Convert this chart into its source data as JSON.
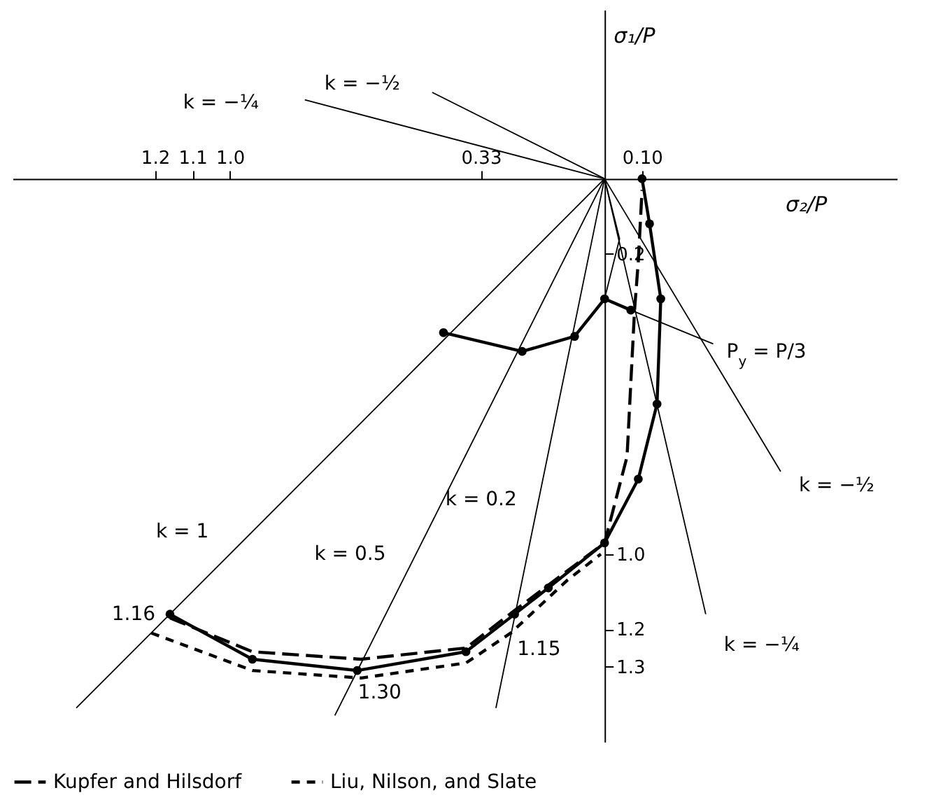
{
  "chart_data": {
    "type": "line",
    "xlabel": "σ₂/P",
    "ylabel": "σ₁/P",
    "xlim": [
      1.58,
      -0.78
    ],
    "ylim": [
      1.5,
      -0.45
    ],
    "xticks": [
      1.2,
      1.1,
      {
        "value": 1.0,
        "label": "1.0"
      },
      0.33,
      {
        "value": -0.1,
        "label": "0.10"
      }
    ],
    "yticks": [
      0.2,
      {
        "value": 1.0,
        "label": "1.0"
      },
      1.2,
      1.3
    ],
    "grid": false,
    "legend": "bottom",
    "series": [
      {
        "color": "#000000",
        "marker": "circle",
        "x": [
          1.16,
          0.94,
          0.66,
          0.37,
          0.24,
          0.15,
          0,
          -0.09,
          -0.14,
          -0.15,
          -0.12,
          -0.1
        ],
        "values": [
          1.16,
          1.28,
          1.31,
          1.26,
          1.16,
          1.09,
          0.97,
          0.8,
          0.6,
          0.32,
          0.12,
          0.0
        ]
      },
      {
        "name": "Kupfer and Hilsdorf",
        "color": "#000000",
        "line_style": "dashed",
        "x": [
          1.16,
          0.94,
          0.65,
          0.37,
          0.24,
          0.08,
          0,
          -0.06,
          -0.08,
          -0.09,
          -0.1
        ],
        "values": [
          1.17,
          1.26,
          1.28,
          1.25,
          1.15,
          1.03,
          0.97,
          0.74,
          0.35,
          0.22,
          0.03
        ]
      },
      {
        "name": "Liu, Nilson, and Slate",
        "color": "#000000",
        "line_style": "dashed",
        "x": [
          1.21,
          0.94,
          0.65,
          0.37,
          0.25,
          0.1,
          0.01
        ],
        "values": [
          1.21,
          1.31,
          1.33,
          1.29,
          1.21,
          1.07,
          1.0
        ]
      },
      {
        "color": "#000000",
        "marker": "circle",
        "x": [
          0.43,
          0.22,
          0.08,
          0,
          -0.07
        ],
        "values": [
          0.41,
          0.46,
          0.42,
          0.32,
          0.35
        ]
      },
      {
        "color": "#000000",
        "x": [
          0,
          -0.04,
          0
        ],
        "values": [
          0,
          0.16,
          0.32
        ]
      },
      {
        "color": "#000000",
        "x": [
          -0.07,
          -0.29
        ],
        "values": [
          0.35,
          0.44
        ]
      },
      {
        "color": "#000000",
        "x": [
          0,
          1.41
        ],
        "values": [
          0,
          1.41
        ]
      },
      {
        "color": "#000000",
        "x": [
          0,
          0.72
        ],
        "values": [
          0,
          1.43
        ]
      },
      {
        "color": "#000000",
        "x": [
          0,
          0.29
        ],
        "values": [
          0,
          1.41
        ]
      },
      {
        "color": "#000000",
        "x": [
          0,
          -0.27
        ],
        "values": [
          0,
          1.16
        ]
      },
      {
        "color": "#000000",
        "x": [
          0,
          -0.47
        ],
        "values": [
          0,
          0.78
        ]
      },
      {
        "color": "#000000",
        "x": [
          0,
          0.8
        ],
        "values": [
          0,
          -0.21
        ]
      },
      {
        "color": "#000000",
        "x": [
          0,
          0.46
        ],
        "values": [
          0,
          -0.23
        ]
      }
    ],
    "annotations": [
      {
        "text": "1.16",
        "x": 1.16,
        "y": 1.16
      },
      {
        "text": "1.30",
        "x": 0.66,
        "y": 1.31
      },
      {
        "text": "1.15",
        "x": 0.25,
        "y": 1.21
      },
      {
        "text": "P$_{y}$ = P/3",
        "x": -0.29,
        "y": 0.44
      },
      {
        "text": "k = 1",
        "x": 1.0,
        "y": 1.0
      },
      {
        "text": "k = 0.5",
        "x": 0.5,
        "y": 1.0
      },
      {
        "text": "k = 0.2",
        "x": 0.18,
        "y": 0.9
      },
      {
        "text": "k = −¼",
        "x": -0.27,
        "y": 1.16
      },
      {
        "text": "k = −½",
        "x": -0.47,
        "y": 0.78
      },
      {
        "text": "k = −¼",
        "x": 0.8,
        "y": -0.21
      },
      {
        "text": "k = −½",
        "x": 0.46,
        "y": -0.23
      }
    ]
  }
}
